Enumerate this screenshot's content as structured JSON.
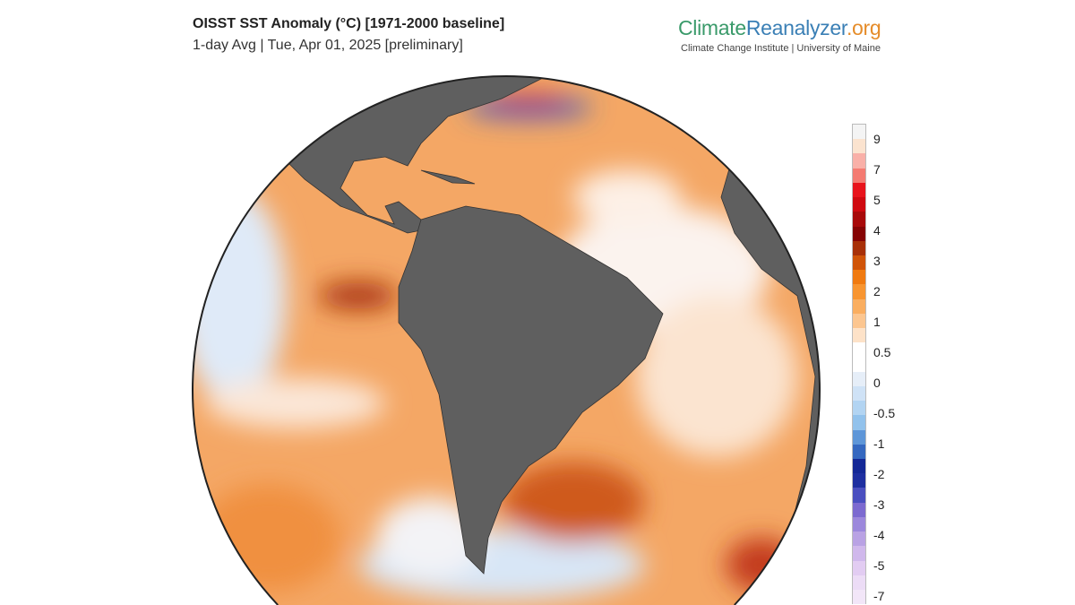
{
  "title": "OISST SST Anomaly (°C) [1971-2000 baseline]",
  "subtitle": "1-day Avg | Tue, Apr 01, 2025 [preliminary]",
  "logo": {
    "part1": "Climate",
    "part2": "Reanalyzer",
    "part3": ".org",
    "tagline": "Climate Change Institute | University of Maine"
  },
  "colorbar": {
    "unit": "°C",
    "tick_labels": [
      "9",
      "7",
      "5",
      "4",
      "3",
      "2",
      "1",
      "0.5",
      "0",
      "-0.5",
      "-1",
      "-2",
      "-3",
      "-4",
      "-5",
      "-7"
    ],
    "colors": [
      "#f4f4f4",
      "#fbe3cf",
      "#f9b0a8",
      "#f47b72",
      "#e8141c",
      "#cf0a10",
      "#a80a0a",
      "#860404",
      "#a83008",
      "#d05408",
      "#f07a10",
      "#f89530",
      "#faae60",
      "#fcc690",
      "#fde2c8",
      "#ffffff",
      "#ffffff",
      "#e6eef8",
      "#cfe2f6",
      "#b2d4f2",
      "#92c2ec",
      "#5e96d8",
      "#3568c0",
      "#142896",
      "#1e2fa0",
      "#4a4fc0",
      "#7c6ad0",
      "#9c88dc",
      "#b9a2e4",
      "#d0b8ec",
      "#e2ccf2",
      "#ecdcf6",
      "#f2e6f8"
    ]
  },
  "map": {
    "projection": "orthographic",
    "land_color": "#5f5f5f",
    "ocean_anomaly_dominant": "#f5a25a"
  }
}
